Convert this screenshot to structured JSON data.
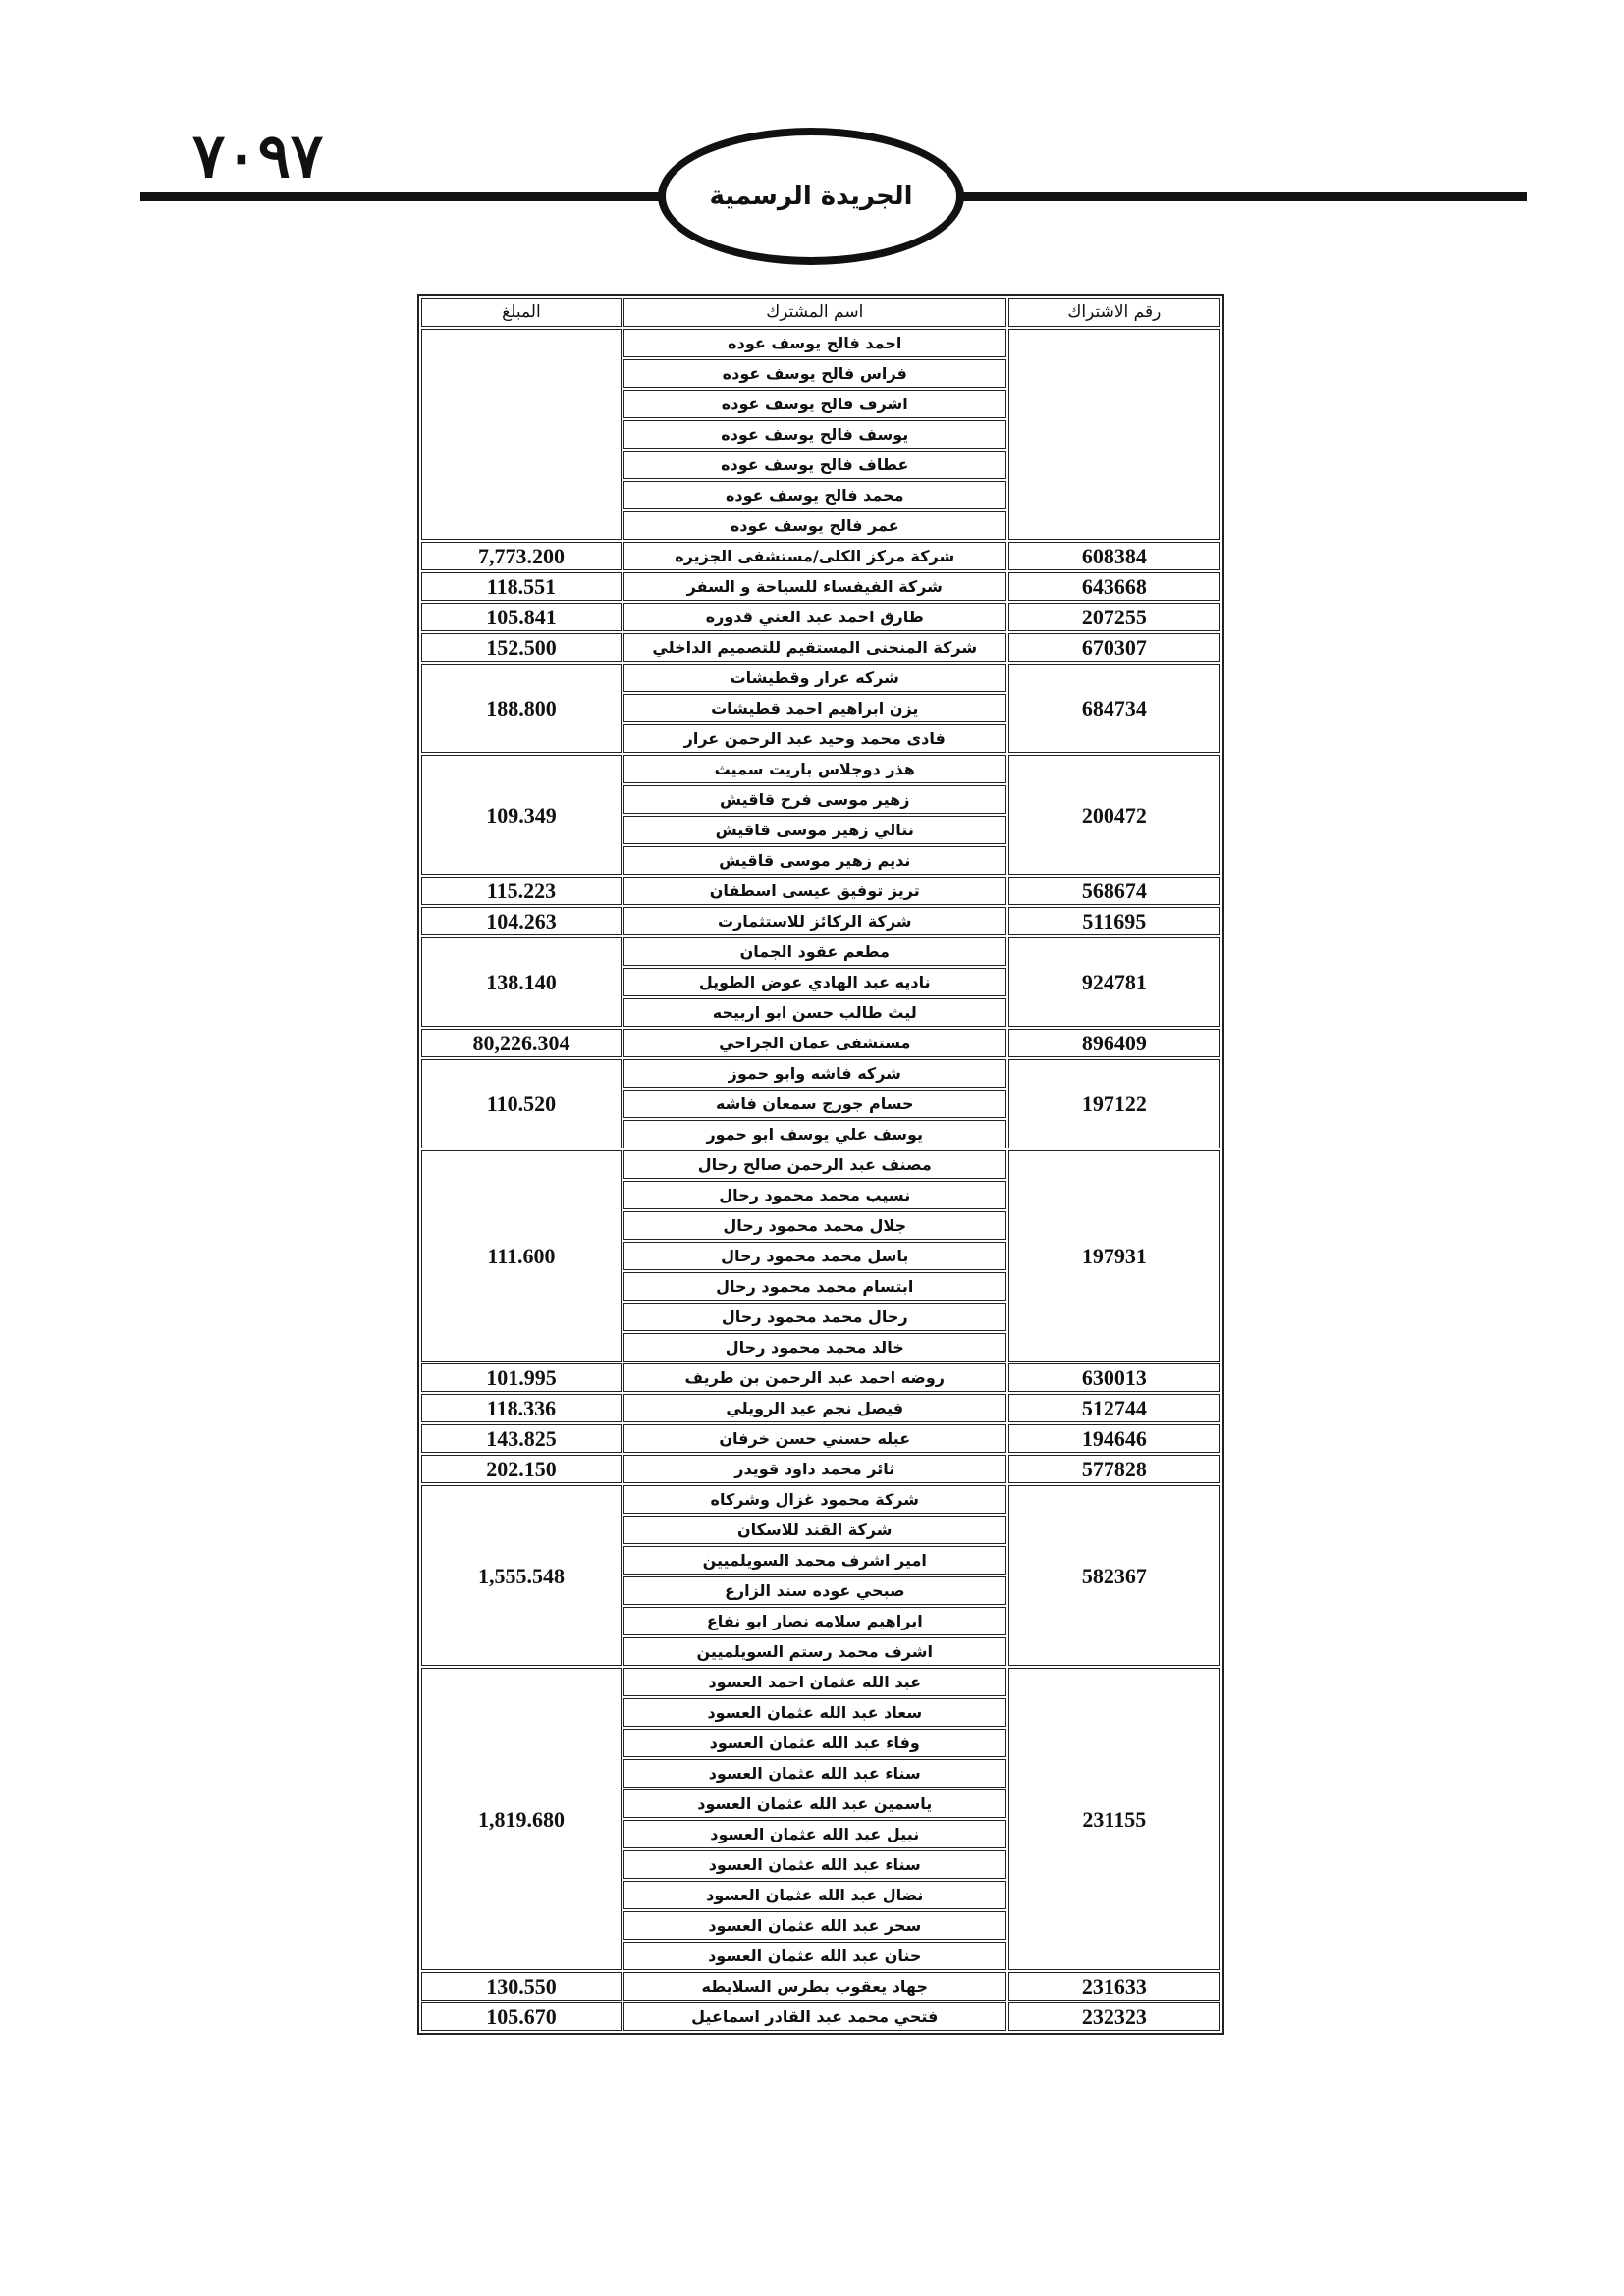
{
  "header": {
    "page_number": "٧٠٩٧",
    "publication_title": "الجريدة الرسمية"
  },
  "table": {
    "columns": {
      "id": "رقم الاشتراك",
      "name": "اسم المشترك",
      "amount": "المبلغ"
    },
    "groups": [
      {
        "id": "",
        "amount": "",
        "names": [
          "احمد فالح يوسف عوده",
          "فراس فالح يوسف عوده",
          "اشرف فالح يوسف عوده",
          "يوسف فالح يوسف عوده",
          "عطاف فالح يوسف عوده",
          "محمد فالح يوسف عوده",
          "عمر فالح يوسف عوده"
        ]
      },
      {
        "id": "608384",
        "amount": "7,773.200",
        "names": [
          "شركة مركز الكلى/مستشفى الجزيره"
        ]
      },
      {
        "id": "643668",
        "amount": "118.551",
        "names": [
          "شركة الفيفساء للسياحة و السفر"
        ]
      },
      {
        "id": "207255",
        "amount": "105.841",
        "names": [
          "طارق احمد عبد الغني قدوره"
        ]
      },
      {
        "id": "670307",
        "amount": "152.500",
        "names": [
          "شركة المنحنى المستقيم للتصميم الداخلي"
        ]
      },
      {
        "id": "684734",
        "amount": "188.800",
        "names": [
          "شركه عرار وقطيشات",
          "يزن ابراهيم احمد قطيشات",
          "فادى محمد وحيد عبد الرحمن عرار"
        ]
      },
      {
        "id": "200472",
        "amount": "109.349",
        "names": [
          "هذر دوجلاس باريت سميث",
          "زهير موسى فرح قاقيش",
          "نتالي زهير موسى قاقيش",
          "نديم زهير موسى قاقيش"
        ]
      },
      {
        "id": "568674",
        "amount": "115.223",
        "names": [
          "تريز توفيق عيسى اسطفان"
        ]
      },
      {
        "id": "511695",
        "amount": "104.263",
        "names": [
          "شركة الركائز للاستثمارت"
        ]
      },
      {
        "id": "924781",
        "amount": "138.140",
        "names": [
          "مطعم عقود الجمان",
          "ناديه عبد الهادي عوض الطويل",
          "ليث طالب حسن ابو اربيحه"
        ]
      },
      {
        "id": "896409",
        "amount": "80,226.304",
        "names": [
          "مستشفى عمان الجراحي"
        ]
      },
      {
        "id": "197122",
        "amount": "110.520",
        "names": [
          "شركه فاشه وابو حموز",
          "حسام جورج سمعان فاشه",
          "يوسف علي يوسف ابو حمور"
        ]
      },
      {
        "id": "197931",
        "amount": "111.600",
        "names": [
          "مصنف عبد الرحمن صالح رحال",
          "نسيب محمد محمود رحال",
          "جلال محمد محمود رحال",
          "باسل محمد محمود رحال",
          "ابتسام محمد محمود رحال",
          "رحال محمد محمود رحال",
          "خالد محمد محمود رحال"
        ]
      },
      {
        "id": "630013",
        "amount": "101.995",
        "names": [
          "روضه احمد عبد الرحمن بن طريف"
        ]
      },
      {
        "id": "512744",
        "amount": "118.336",
        "names": [
          "فيصل نجم عيد الرويلي"
        ]
      },
      {
        "id": "194646",
        "amount": "143.825",
        "names": [
          "عبله حسني حسن خرفان"
        ]
      },
      {
        "id": "577828",
        "amount": "202.150",
        "names": [
          "ثائر محمد داود قويدر"
        ]
      },
      {
        "id": "582367",
        "amount": "1,555.548",
        "names": [
          "شركة محمود غزال وشركاه",
          "شركة القند للاسكان",
          "امير اشرف محمد السويلميين",
          "صبحي عوده سند الزارع",
          "ابراهيم سلامه نصار ابو نفاع",
          "اشرف محمد رستم السويلميين"
        ]
      },
      {
        "id": "231155",
        "amount": "1,819.680",
        "names": [
          "عبد الله عثمان احمد العسود",
          "سعاد عبد الله عثمان العسود",
          "وفاء عبد الله عثمان العسود",
          "سناء عبد الله عثمان العسود",
          "ياسمين عبد الله عثمان العسود",
          "نبيل عبد الله عثمان العسود",
          "سناء عبد الله عثمان العسود",
          "نضال عبد الله عثمان العسود",
          "سحر عبد الله عثمان العسود",
          "حنان عبد الله عثمان العسود"
        ]
      },
      {
        "id": "231633",
        "amount": "130.550",
        "names": [
          "جهاد يعقوب بطرس السلايطه"
        ]
      },
      {
        "id": "232323",
        "amount": "105.670",
        "names": [
          "فتحي محمد عبد القادر اسماعيل"
        ]
      }
    ]
  }
}
